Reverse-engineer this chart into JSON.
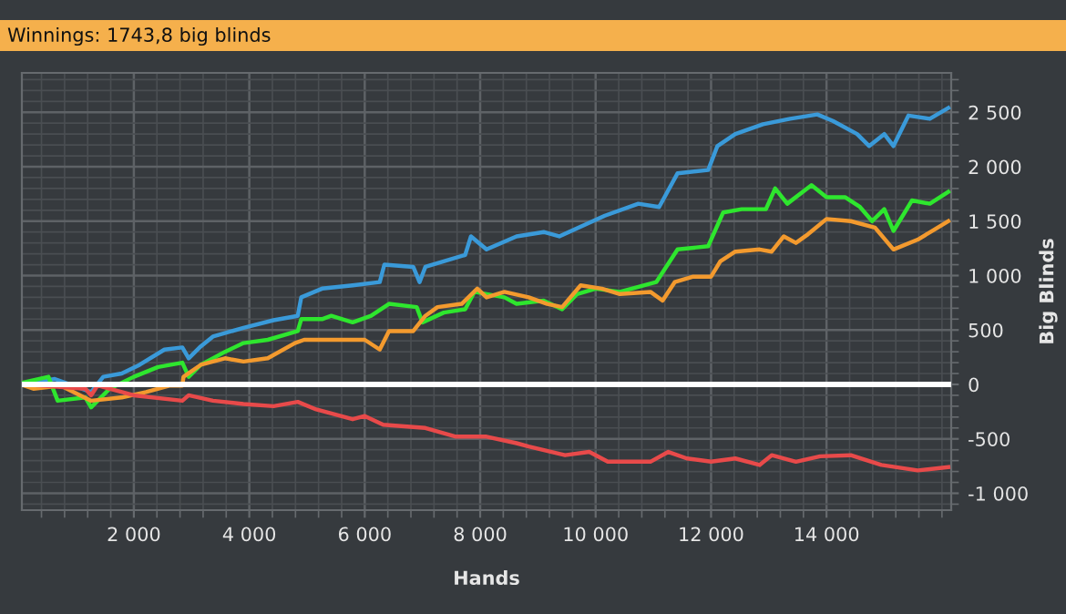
{
  "chart_data": {
    "type": "line",
    "title": "Winnings: 1743,8 big blinds",
    "xlabel": "Hands",
    "ylabel": "Big Blinds",
    "xlim": [
      60,
      16160
    ],
    "ylim": [
      -1155,
      2862
    ],
    "xticks": [
      {
        "value": 2000,
        "label": "2 000"
      },
      {
        "value": 4000,
        "label": "4 000"
      },
      {
        "value": 6000,
        "label": "6 000"
      },
      {
        "value": 8000,
        "label": "8 000"
      },
      {
        "value": 10000,
        "label": "10 000"
      },
      {
        "value": 12000,
        "label": "12 000"
      },
      {
        "value": 14000,
        "label": "14 000"
      }
    ],
    "yticks": [
      {
        "value": -1000,
        "label": "-1 000"
      },
      -500,
      0,
      500,
      {
        "value": 1000,
        "label": "1 000"
      },
      {
        "value": 1500,
        "label": "1 500"
      },
      {
        "value": 2000,
        "label": "2 000"
      },
      {
        "value": 2500,
        "label": "2 500"
      }
    ],
    "grid": true,
    "legend": false,
    "marker": "none",
    "line_style": "solid",
    "ref_lines": [
      {
        "axis": "y",
        "value": 0,
        "color": "#ffffff"
      }
    ],
    "series": [
      {
        "color": "#3a9ad9",
        "x": [
          100,
          630,
          1260,
          1470,
          1790,
          2100,
          2530,
          2840,
          2950,
          3160,
          3370,
          3900,
          4420,
          4840,
          4900,
          5260,
          5790,
          6260,
          6340,
          6840,
          6950,
          7050,
          7740,
          7840,
          8110,
          8630,
          9100,
          9370,
          10160,
          10740,
          11100,
          11420,
          11950,
          12110,
          12420,
          12900,
          13370,
          13840,
          14110,
          14530,
          14740,
          15000,
          15160,
          15420,
          15790,
          16110
        ],
        "values": [
          0,
          50,
          -70,
          70,
          100,
          180,
          320,
          340,
          240,
          350,
          440,
          520,
          590,
          630,
          800,
          880,
          910,
          940,
          1100,
          1080,
          940,
          1080,
          1190,
          1360,
          1240,
          1360,
          1400,
          1360,
          1550,
          1660,
          1630,
          1940,
          1970,
          2190,
          2300,
          2390,
          2440,
          2480,
          2420,
          2300,
          2190,
          2300,
          2190,
          2470,
          2440,
          2540
        ]
      },
      {
        "color": "#2ee62e",
        "x": [
          100,
          520,
          680,
          1160,
          1260,
          1580,
          2000,
          2420,
          2840,
          2950,
          3160,
          3580,
          3900,
          4320,
          4840,
          4900,
          5260,
          5420,
          5790,
          6110,
          6420,
          6900,
          7000,
          7370,
          7740,
          7900,
          8420,
          8630,
          9100,
          9420,
          9680,
          10000,
          10420,
          11050,
          11420,
          11950,
          12210,
          12530,
          12950,
          13110,
          13320,
          13740,
          14000,
          14320,
          14580,
          14790,
          15000,
          15160,
          15480,
          15790,
          16110
        ],
        "values": [
          20,
          70,
          -150,
          -120,
          -210,
          -40,
          70,
          160,
          200,
          70,
          180,
          300,
          380,
          410,
          490,
          600,
          600,
          630,
          570,
          630,
          740,
          710,
          570,
          660,
          690,
          850,
          800,
          740,
          770,
          690,
          830,
          880,
          850,
          940,
          1240,
          1270,
          1580,
          1610,
          1610,
          1800,
          1660,
          1830,
          1720,
          1720,
          1630,
          1500,
          1610,
          1410,
          1690,
          1660,
          1770
        ]
      },
      {
        "color": "#f39a2e",
        "x": [
          100,
          260,
          730,
          1260,
          1790,
          2210,
          2630,
          2840,
          2860,
          3160,
          3580,
          3900,
          4320,
          4790,
          4950,
          5470,
          6000,
          6260,
          6420,
          6840,
          7050,
          7260,
          7680,
          7950,
          8110,
          8420,
          8840,
          9160,
          9420,
          9740,
          10110,
          10420,
          10950,
          11160,
          11370,
          11690,
          12000,
          12160,
          12420,
          12840,
          13050,
          13260,
          13470,
          13680,
          14000,
          14420,
          14840,
          15160,
          15580,
          16110
        ],
        "values": [
          -10,
          -40,
          -10,
          -150,
          -120,
          -70,
          -10,
          -10,
          70,
          180,
          240,
          210,
          240,
          380,
          410,
          410,
          410,
          320,
          490,
          490,
          630,
          710,
          740,
          880,
          800,
          850,
          800,
          740,
          710,
          910,
          880,
          830,
          850,
          770,
          940,
          990,
          990,
          1130,
          1220,
          1240,
          1220,
          1360,
          1300,
          1380,
          1520,
          1500,
          1440,
          1240,
          1330,
          1500
        ]
      },
      {
        "color": "#e84a4a",
        "x": [
          100,
          1160,
          1260,
          1370,
          2000,
          2840,
          2950,
          3370,
          3900,
          4420,
          4840,
          5160,
          5790,
          6000,
          6320,
          7050,
          7580,
          8110,
          8630,
          8840,
          9470,
          9890,
          10210,
          10950,
          11260,
          11580,
          12000,
          12420,
          12840,
          13050,
          13470,
          13890,
          14420,
          14950,
          15580,
          16110
        ],
        "values": [
          0,
          -40,
          -100,
          -10,
          -100,
          -150,
          -100,
          -150,
          -180,
          -200,
          -160,
          -230,
          -320,
          -290,
          -370,
          -400,
          -480,
          -480,
          -540,
          -570,
          -650,
          -620,
          -710,
          -710,
          -620,
          -680,
          -710,
          -680,
          -740,
          -650,
          -710,
          -660,
          -650,
          -740,
          -790,
          -760
        ]
      }
    ]
  }
}
